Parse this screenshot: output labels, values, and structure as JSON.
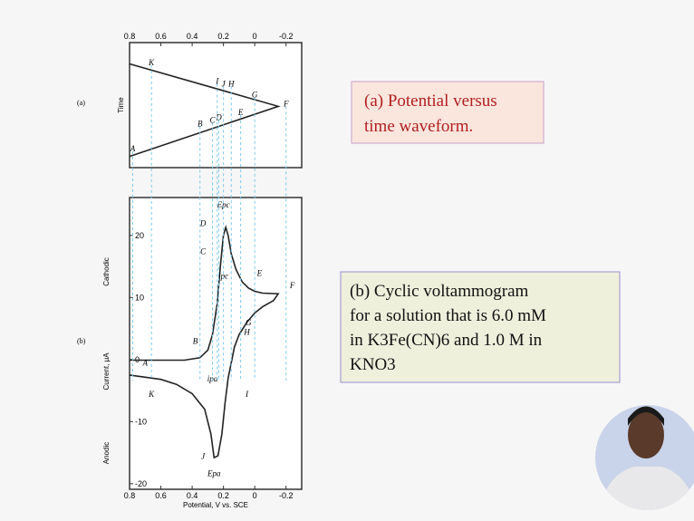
{
  "chart_data": [
    {
      "type": "line",
      "label": "(a)",
      "ylabel": "Time",
      "xaxis": "top",
      "xlim": [
        0.8,
        -0.3
      ],
      "ylim": [
        0,
        1
      ],
      "xticks": [
        0.8,
        0.6,
        0.4,
        0.2,
        0,
        -0.2
      ],
      "x": [
        0.8,
        -0.15,
        0.8
      ],
      "y": [
        0.09,
        0.49,
        0.83
      ],
      "color": "#222222",
      "annotations": [
        {
          "text": "A",
          "x": 0.78,
          "y": 0.13
        },
        {
          "text": "B",
          "x": 0.35,
          "y": 0.33
        },
        {
          "text": "C",
          "x": 0.27,
          "y": 0.36
        },
        {
          "text": "D",
          "x": 0.23,
          "y": 0.38
        },
        {
          "text": "E",
          "x": 0.09,
          "y": 0.42
        },
        {
          "text": "F",
          "x": -0.2,
          "y": 0.49
        },
        {
          "text": "G",
          "x": 0.0,
          "y": 0.56
        },
        {
          "text": "H",
          "x": 0.15,
          "y": 0.65
        },
        {
          "text": "I",
          "x": 0.24,
          "y": 0.67
        },
        {
          "text": "J",
          "x": 0.2,
          "y": 0.65
        },
        {
          "text": "K",
          "x": 0.66,
          "y": 0.82
        }
      ]
    },
    {
      "type": "line",
      "label": "(b)",
      "ylabels": [
        "Cathodic",
        "Current, μA",
        "Anodic"
      ],
      "xlabel": "Potential, V vs. SCE",
      "xaxis": "bottom",
      "xlim": [
        0.8,
        -0.3
      ],
      "ylim": [
        -20.9,
        26.1
      ],
      "xticks": [
        0.8,
        0.6,
        0.4,
        0.2,
        0,
        -0.2
      ],
      "yticks": [
        20,
        10,
        0,
        -10,
        -20
      ],
      "x": [
        0.8,
        0.6,
        0.45,
        0.35,
        0.3,
        0.27,
        0.24,
        0.22,
        0.2,
        0.185,
        0.17,
        0.15,
        0.12,
        0.08,
        0.04,
        0,
        -0.05,
        -0.15,
        -0.12,
        -0.05,
        0,
        0.05,
        0.1,
        0.13,
        0.15,
        0.17,
        0.19,
        0.21,
        0.235,
        0.26,
        0.28,
        0.32,
        0.4,
        0.5,
        0.6,
        0.8
      ],
      "y": [
        -0.1,
        -0.1,
        -0.1,
        0.3,
        1.5,
        4,
        9,
        15,
        20,
        21.3,
        20,
        17,
        14.5,
        12.5,
        11.5,
        11,
        10.7,
        10.6,
        9.5,
        8.5,
        7.5,
        6,
        4,
        2,
        -0.5,
        -3,
        -7,
        -12,
        -15.5,
        -15.8,
        -12,
        -8,
        -5.5,
        -4,
        -3.2,
        -2.5
      ],
      "color": "#222222",
      "annotations": [
        {
          "text": "A",
          "x": 0.7,
          "y": -1
        },
        {
          "text": "B",
          "x": 0.38,
          "y": 2.5
        },
        {
          "text": "C",
          "x": 0.33,
          "y": 17
        },
        {
          "text": "D",
          "x": 0.33,
          "y": 21.5
        },
        {
          "text": "Epc",
          "x": 0.2,
          "y": 24.5
        },
        {
          "text": "ipc",
          "x": 0.2,
          "y": 13
        },
        {
          "text": "E",
          "x": -0.03,
          "y": 13.5
        },
        {
          "text": "F",
          "x": -0.24,
          "y": 11.5
        },
        {
          "text": "G",
          "x": 0.04,
          "y": 5.5
        },
        {
          "text": "H",
          "x": 0.05,
          "y": 4
        },
        {
          "text": "I",
          "x": 0.05,
          "y": -6
        },
        {
          "text": "J",
          "x": 0.33,
          "y": -16
        },
        {
          "text": "Epa",
          "x": 0.26,
          "y": -18.8
        },
        {
          "text": "ipa",
          "x": 0.27,
          "y": -3.5
        },
        {
          "text": "K",
          "x": 0.66,
          "y": -6
        }
      ]
    }
  ],
  "captions": [
    {
      "lines": [
        "(a) Potential versus",
        "time waveform."
      ]
    },
    {
      "lines": [
        "(b) Cyclic voltammogram",
        "for a solution that is 6.0 mM",
        "in K3Fe(CN)6 and 1.0 M in",
        "KNO3"
      ]
    }
  ]
}
